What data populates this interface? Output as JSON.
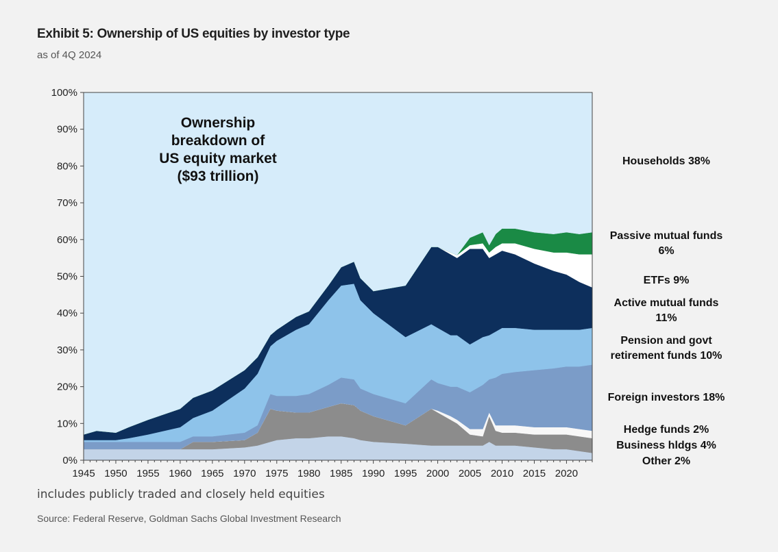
{
  "header": {
    "title": "Exhibit 5: Ownership of US equities by investor type",
    "subtitle": "as of 4Q 2024"
  },
  "footer": {
    "note": "includes publicly traded and closely held equities",
    "source": "Source: Federal Reserve, Goldman Sachs Global Investment Research"
  },
  "chart_data": {
    "type": "area",
    "stacked": true,
    "title": "Exhibit 5: Ownership of US equities by investor type",
    "subtitle": "as of 4Q 2024",
    "xlim": [
      1945,
      2024
    ],
    "ylim": [
      0,
      100
    ],
    "x_ticks": [
      1945,
      1950,
      1955,
      1960,
      1965,
      1970,
      1975,
      1980,
      1985,
      1990,
      1995,
      2000,
      2005,
      2010,
      2015,
      2020
    ],
    "y_ticks": [
      "0%",
      "10%",
      "20%",
      "30%",
      "40%",
      "50%",
      "60%",
      "70%",
      "80%",
      "90%",
      "100%"
    ],
    "annotation": [
      "Ownership",
      "breakdown  of",
      "US equity market",
      "($93 trillion)"
    ],
    "x": [
      1945,
      1947,
      1950,
      1952,
      1955,
      1960,
      1962,
      1965,
      1970,
      1972,
      1974,
      1975,
      1978,
      1980,
      1983,
      1985,
      1987,
      1988,
      1990,
      1995,
      1999,
      2000,
      2002,
      2003,
      2005,
      2007,
      2008,
      2009,
      2010,
      2012,
      2015,
      2018,
      2020,
      2022,
      2024
    ],
    "series": [
      {
        "name": "Other 2%",
        "color": "#c3d4e8",
        "values": [
          3.0,
          3.0,
          3.0,
          3.0,
          3.0,
          3.0,
          3.0,
          3.0,
          3.5,
          4.0,
          5.0,
          5.5,
          6.0,
          6.0,
          6.5,
          6.5,
          6.0,
          5.5,
          5.0,
          4.5,
          4.0,
          4.0,
          4.0,
          4.0,
          4.0,
          4.0,
          5.0,
          4.0,
          4.0,
          4.0,
          3.5,
          3.0,
          3.0,
          2.5,
          2.0
        ]
      },
      {
        "name": "Business hldgs 4%",
        "color": "#8c8c8c",
        "values": [
          0,
          0,
          0,
          0,
          0,
          0,
          2.0,
          2.0,
          2.0,
          3.5,
          9.0,
          8.0,
          7.0,
          7.0,
          8.0,
          9.0,
          9.0,
          8.0,
          7.0,
          5.0,
          10.0,
          9.0,
          7.0,
          6.0,
          3.0,
          2.5,
          7.0,
          4.0,
          3.5,
          3.5,
          3.5,
          4.0,
          4.0,
          4.0,
          4.0
        ]
      },
      {
        "name": "Hedge funds 2%",
        "color": "#f7f7f7",
        "values": [
          0,
          0,
          0,
          0,
          0,
          0,
          0,
          0,
          0,
          0,
          0,
          0,
          0,
          0,
          0,
          0,
          0,
          0,
          0,
          0,
          0,
          0.5,
          1.0,
          1.0,
          1.5,
          2.0,
          1.0,
          1.5,
          2.0,
          2.0,
          2.0,
          2.0,
          2.0,
          2.0,
          2.0
        ]
      },
      {
        "name": "Foreign investors 18%",
        "color": "#7b9cc8",
        "values": [
          2.0,
          2.0,
          2.0,
          2.0,
          2.0,
          2.0,
          1.5,
          1.5,
          2.0,
          2.0,
          4.0,
          4.0,
          4.5,
          5.0,
          6.0,
          7.0,
          7.0,
          6.0,
          6.0,
          6.0,
          8.0,
          7.5,
          8.0,
          9.0,
          10.0,
          12.0,
          9.0,
          13.0,
          14.0,
          14.5,
          15.5,
          16.0,
          16.5,
          17.0,
          18.0
        ]
      },
      {
        "name": "Pension and govt retirement funds 10%",
        "color": "#8ec3ea",
        "values": [
          0.5,
          0.5,
          0.5,
          1.0,
          2.0,
          4.0,
          5.0,
          7.0,
          12.0,
          14.0,
          13.0,
          15.0,
          18.0,
          19.0,
          23.0,
          25.0,
          26.0,
          24.0,
          22.0,
          18.0,
          15.0,
          15.0,
          14.0,
          14.0,
          13.0,
          13.0,
          12.0,
          12.5,
          12.5,
          12.0,
          11.0,
          10.5,
          10.0,
          10.0,
          10.0
        ]
      },
      {
        "name": "Active mutual funds 11%",
        "color": "#0d2f5c",
        "values": [
          1.5,
          2.5,
          2.0,
          3.0,
          4.0,
          5.0,
          5.5,
          5.5,
          5.0,
          4.5,
          3.0,
          3.0,
          3.5,
          3.5,
          4.0,
          5.0,
          6.0,
          6.0,
          6.0,
          14.0,
          21.0,
          22.0,
          22.0,
          21.0,
          26.0,
          24.0,
          21.0,
          21.0,
          21.0,
          20.0,
          18.0,
          16.0,
          15.0,
          13.0,
          11.0
        ]
      },
      {
        "name": "ETFs 9%",
        "color": "#ffffff",
        "values": [
          0,
          0,
          0,
          0,
          0,
          0,
          0,
          0,
          0,
          0,
          0,
          0,
          0,
          0,
          0,
          0,
          0,
          0,
          0,
          0,
          0,
          0,
          0.5,
          0.8,
          1.0,
          1.5,
          1.5,
          2.0,
          2.0,
          3.0,
          4.0,
          5.0,
          6.0,
          7.5,
          9.0
        ]
      },
      {
        "name": "Passive mutual funds 6%",
        "color": "#1a8a45",
        "values": [
          0,
          0,
          0,
          0,
          0,
          0,
          0,
          0,
          0,
          0,
          0,
          0,
          0,
          0,
          0,
          0,
          0,
          0,
          0,
          0,
          0,
          0,
          0,
          0,
          2.0,
          3.0,
          2.0,
          3.5,
          4.0,
          4.0,
          4.5,
          5.0,
          5.5,
          5.5,
          6.0
        ]
      },
      {
        "name": "Households 38%",
        "color": "#d6ecfa",
        "values": [
          93.0,
          92.0,
          92.5,
          91.0,
          89.0,
          86.0,
          83.0,
          81.0,
          75.5,
          72.0,
          66.0,
          64.5,
          61.0,
          59.5,
          52.5,
          47.5,
          46.0,
          50.5,
          54.0,
          52.5,
          42.0,
          42.0,
          43.5,
          44.2,
          39.5,
          38.0,
          41.5,
          38.5,
          37.0,
          37.0,
          38.0,
          38.5,
          38.0,
          38.5,
          38.0
        ]
      }
    ],
    "legend_labels": [
      {
        "series": "Households 38%",
        "lines": [
          "Households 38%"
        ]
      },
      {
        "series": "Passive mutual funds 6%",
        "lines": [
          "Passive mutual funds",
          "6%"
        ]
      },
      {
        "series": "ETFs 9%",
        "lines": [
          "ETFs 9%"
        ]
      },
      {
        "series": "Active mutual funds 11%",
        "lines": [
          "Active mutual funds",
          "11%"
        ]
      },
      {
        "series": "Pension and govt retirement funds 10%",
        "lines": [
          "Pension and govt",
          "retirement funds 10%"
        ]
      },
      {
        "series": "Foreign investors 18%",
        "lines": [
          "Foreign investors 18%"
        ]
      },
      {
        "series": "Hedge funds 2%",
        "lines": [
          "Hedge funds 2%"
        ]
      },
      {
        "series": "Business hldgs 4%",
        "lines": [
          "Business hldgs 4%"
        ]
      },
      {
        "series": "Other 2%",
        "lines": [
          "Other 2%"
        ]
      }
    ],
    "legend_placement": "right"
  }
}
